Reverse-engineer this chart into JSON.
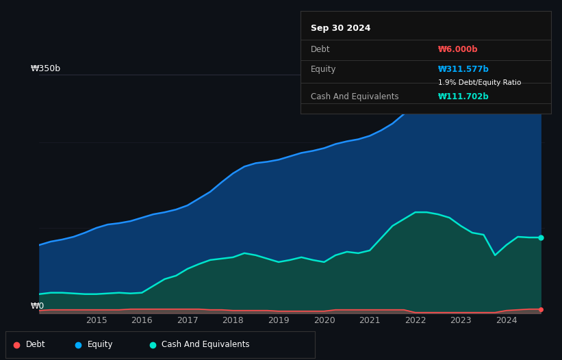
{
  "bg_color": "#0d1117",
  "plot_bg_color": "#0d1117",
  "title_box": {
    "date": "Sep 30 2024",
    "debt_label": "Debt",
    "debt_value": "₩6.000b",
    "equity_label": "Equity",
    "equity_value": "₩311.577b",
    "ratio_text": "1.9% Debt/Equity Ratio",
    "cash_label": "Cash And Equivalents",
    "cash_value": "₩111.702b",
    "debt_color": "#ff4d4d",
    "equity_color": "#00aaff",
    "cash_color": "#00e5cc"
  },
  "ylabel_350": "₩350b",
  "ylabel_0": "₩0",
  "x_ticks": [
    "2015",
    "2016",
    "2017",
    "2018",
    "2019",
    "2020",
    "2021",
    "2022",
    "2023",
    "2024"
  ],
  "legend": [
    {
      "label": "Debt",
      "color": "#ff4d4d"
    },
    {
      "label": "Equity",
      "color": "#00aaff"
    },
    {
      "label": "Cash And Equivalents",
      "color": "#00e5cc"
    }
  ],
  "equity_color": "#1e90ff",
  "equity_fill": "#0a3a6e",
  "cash_color": "#00e5cc",
  "cash_fill": "#0d4a44",
  "debt_color": "#ff4d4d",
  "grid_color": "#2a2a3a",
  "years": [
    2013.75,
    2014.0,
    2014.25,
    2014.5,
    2014.75,
    2015.0,
    2015.25,
    2015.5,
    2015.75,
    2016.0,
    2016.25,
    2016.5,
    2016.75,
    2017.0,
    2017.25,
    2017.5,
    2017.75,
    2018.0,
    2018.25,
    2018.5,
    2018.75,
    2019.0,
    2019.25,
    2019.5,
    2019.75,
    2020.0,
    2020.25,
    2020.5,
    2020.75,
    2021.0,
    2021.25,
    2021.5,
    2021.75,
    2022.0,
    2022.25,
    2022.5,
    2022.75,
    2023.0,
    2023.25,
    2023.5,
    2023.75,
    2024.0,
    2024.25,
    2024.5,
    2024.75
  ],
  "equity": [
    100,
    105,
    108,
    112,
    118,
    125,
    130,
    132,
    135,
    140,
    145,
    148,
    152,
    158,
    168,
    178,
    192,
    205,
    215,
    220,
    222,
    225,
    230,
    235,
    238,
    242,
    248,
    252,
    255,
    260,
    268,
    278,
    292,
    308,
    318,
    325,
    328,
    320,
    315,
    310,
    308,
    312,
    318,
    311,
    311
  ],
  "cash": [
    28,
    30,
    30,
    29,
    28,
    28,
    29,
    30,
    29,
    30,
    40,
    50,
    55,
    65,
    72,
    78,
    80,
    82,
    88,
    85,
    80,
    75,
    78,
    82,
    78,
    75,
    85,
    90,
    88,
    92,
    110,
    128,
    138,
    148,
    148,
    145,
    140,
    128,
    118,
    115,
    85,
    100,
    112,
    111,
    111
  ],
  "debt": [
    4,
    5,
    5,
    5,
    5,
    5,
    5,
    5,
    6,
    6,
    6,
    6,
    6,
    6,
    6,
    5,
    5,
    4,
    4,
    4,
    4,
    3,
    3,
    3,
    3,
    3,
    5,
    5,
    5,
    5,
    5,
    5,
    5,
    1,
    1,
    1,
    1,
    1,
    1,
    1,
    1,
    4,
    5,
    6,
    6
  ],
  "ylim": [
    0,
    380
  ],
  "xlim": [
    2013.75,
    2024.85
  ]
}
